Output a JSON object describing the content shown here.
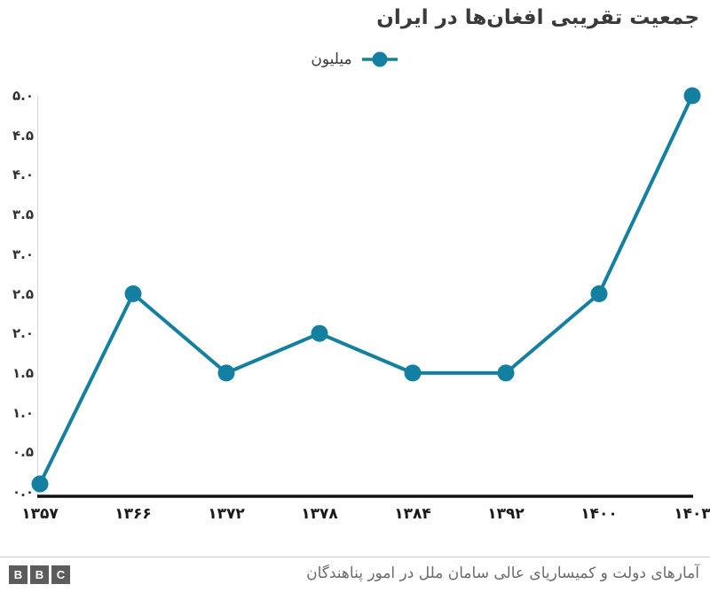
{
  "title": "جمعیت تقریبی افغان‌ها در ایران",
  "legend": {
    "label": "میلیون",
    "marker_color": "#1380A1"
  },
  "chart_data": {
    "type": "line",
    "title": "جمعیت تقریبی افغان‌ها در ایران",
    "unit_label": "میلیون",
    "categories": [
      "۱۳۵۷",
      "۱۳۶۶",
      "۱۳۷۲",
      "۱۳۷۸",
      "۱۳۸۴",
      "۱۳۹۲",
      "۱۴۰۰",
      "۱۴۰۳"
    ],
    "series": [
      {
        "name": "میلیون",
        "values": [
          0.1,
          2.5,
          1.5,
          2.0,
          1.5,
          1.5,
          2.5,
          5.0
        ]
      }
    ],
    "yticks": [
      {
        "label": "۰.۰",
        "value": 0
      },
      {
        "label": "۰.۵",
        "value": 0.5
      },
      {
        "label": "۱.۰",
        "value": 1
      },
      {
        "label": "۱.۵",
        "value": 1.5
      },
      {
        "label": "۲.۰",
        "value": 2
      },
      {
        "label": "۲.۵",
        "value": 2.5
      },
      {
        "label": "۳.۰",
        "value": 3
      },
      {
        "label": "۳.۵",
        "value": 3.5
      },
      {
        "label": "۴.۰",
        "value": 4
      },
      {
        "label": "۴.۵",
        "value": 4.5
      },
      {
        "label": "۵.۰",
        "value": 5
      }
    ],
    "ylim": [
      0,
      5
    ],
    "grid": false,
    "legend_position": "top-center",
    "line_color": "#1380A1",
    "axis_line_color": "#d8d8d8",
    "baseline_color": "#111111"
  },
  "footer": {
    "source": "آمارهای دولت و کمیساریای عالی سامان ملل در امور پناهندگان",
    "logo_letters": [
      "B",
      "B",
      "C"
    ]
  }
}
